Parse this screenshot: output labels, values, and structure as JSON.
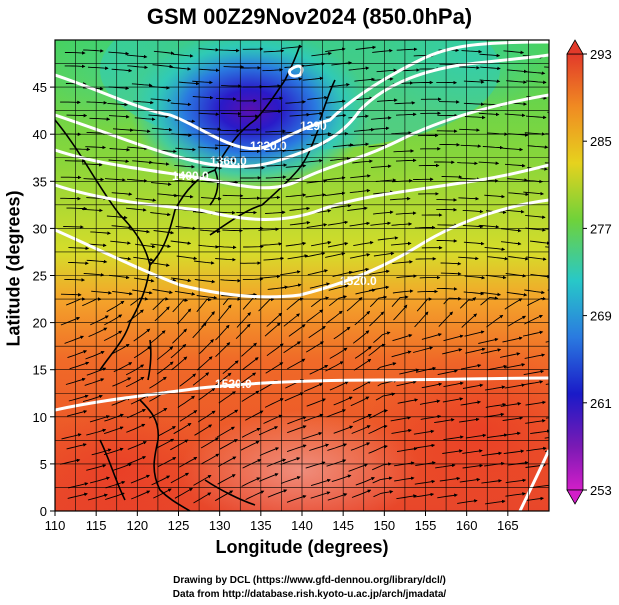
{
  "title": "GSM 00Z29Nov2024 (850.0hPa)",
  "axes": {
    "xlabel": "Longitude (degrees)",
    "ylabel": "Latitude  (degrees)",
    "x_ticks": [
      "110",
      "115",
      "120",
      "125",
      "130",
      "135",
      "140",
      "145",
      "150",
      "155",
      "160",
      "165"
    ],
    "y_ticks": [
      "0",
      "5",
      "10",
      "15",
      "20",
      "25",
      "30",
      "35",
      "40",
      "45"
    ]
  },
  "colorbar": {
    "labels": [
      "293",
      "285",
      "277",
      "269",
      "261",
      "253"
    ],
    "colors": [
      "#e23a2a",
      "#f08a22",
      "#e6d21e",
      "#6fd23a",
      "#28c8c8",
      "#2a7ae0",
      "#1a1ac8",
      "#7a1ab4",
      "#d21ec8"
    ]
  },
  "contours": [
    {
      "label": "1290"
    },
    {
      "label": "1320.0"
    },
    {
      "label": "1360.0"
    },
    {
      "label": "1400.0"
    },
    {
      "label": "1520.0"
    },
    {
      "label": "1520.0"
    }
  ],
  "credits": {
    "line1": "Drawing by DCL (https://www.gfd-dennou.org/library/dcl/)",
    "line2": "Data from http://database.rish.kyoto-u.ac.jp/arch/jmadata/"
  },
  "chart_data": {
    "type": "map",
    "title": "GSM 00Z29Nov2024 (850.0hPa)",
    "xlabel": "Longitude (degrees)",
    "ylabel": "Latitude  (degrees)",
    "xlim": [
      110,
      170
    ],
    "ylim": [
      0,
      50
    ],
    "colorbar_range": [
      253,
      293
    ],
    "contour_labels": [
      "1290",
      "1320.0",
      "1360.0",
      "1400.0",
      "1520.0",
      "1520.0"
    ]
  }
}
